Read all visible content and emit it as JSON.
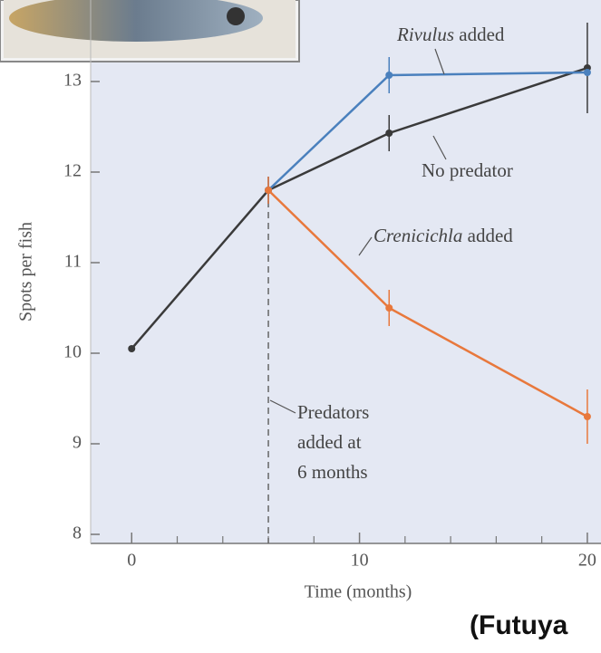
{
  "chart_data": {
    "type": "line",
    "y_label": "Spots per fish",
    "x_label": "Time (months)",
    "source": "(Futuya",
    "xlim": [
      -1.8,
      20.6
    ],
    "ylim": [
      7.9,
      13.9
    ],
    "xticks": [
      0,
      10,
      20
    ],
    "xminorticks": [
      2,
      4,
      6,
      8,
      12,
      14,
      16,
      18
    ],
    "yticks": [
      8,
      9,
      10,
      11,
      12,
      13
    ],
    "background": "#e4e8f3",
    "series": [
      {
        "name": "No predator",
        "color": "#3a3a3a",
        "x": [
          0,
          6,
          11.3,
          20
        ],
        "values": [
          10.05,
          11.8,
          12.43,
          13.15
        ],
        "errors": [
          null,
          0.15,
          0.2,
          0.5
        ]
      },
      {
        "name": "Rivulus added",
        "color": "#4a80bd",
        "x": [
          6,
          11.3,
          20
        ],
        "values": [
          11.8,
          13.07,
          13.1
        ],
        "errors": [
          0.15,
          0.2,
          null
        ]
      },
      {
        "name": "Crenicichla added",
        "color": "#e8783c",
        "x": [
          6,
          11.3,
          20
        ],
        "values": [
          11.8,
          10.5,
          9.3
        ],
        "errors": [
          0.15,
          0.2,
          0.3
        ]
      }
    ],
    "vline": 6,
    "annotations": [
      {
        "italic": "Rivulus",
        "text": "added"
      },
      {
        "text": "No predator"
      },
      {
        "italic": "Crenicichla",
        "text": "added"
      },
      {
        "lines": [
          "Predators",
          "added at",
          "6 months"
        ]
      }
    ]
  }
}
